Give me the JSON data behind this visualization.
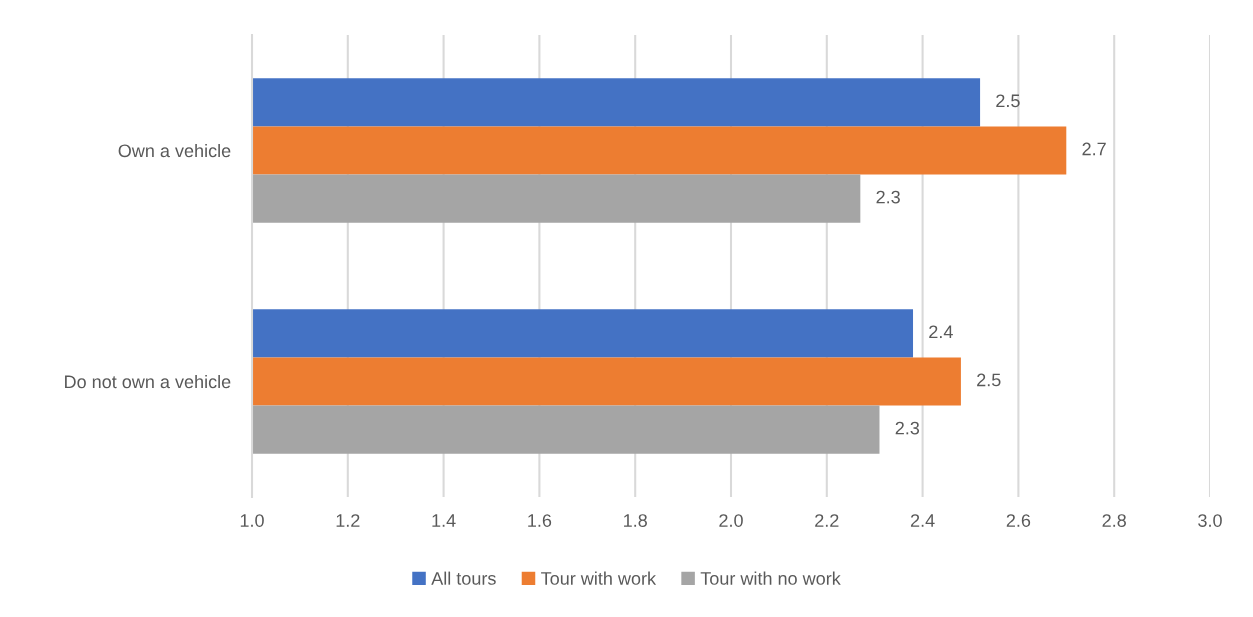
{
  "chart_data": {
    "type": "bar",
    "orientation": "horizontal",
    "categories": [
      "Own a vehicle",
      "Do not own a vehicle"
    ],
    "series": [
      {
        "name": "All tours",
        "color": "#4472c4",
        "values": [
          2.52,
          2.38
        ],
        "value_labels": [
          "2.5",
          "2.4"
        ]
      },
      {
        "name": "Tour with work",
        "color": "#ed7d31",
        "values": [
          2.7,
          2.48
        ],
        "value_labels": [
          "2.7",
          "2.5"
        ]
      },
      {
        "name": "Tour with no work",
        "color": "#a5a5a5",
        "values": [
          2.27,
          2.31
        ],
        "value_labels": [
          "2.3",
          "2.3"
        ]
      }
    ],
    "xlim": [
      1,
      3
    ],
    "xticks": [
      {
        "value": 1,
        "label": "1.0"
      },
      1.2,
      1.4,
      1.6,
      1.8,
      {
        "value": 2,
        "label": "2.0"
      },
      2.2,
      2.4,
      2.6,
      2.8,
      {
        "value": 3,
        "label": "3.0"
      }
    ],
    "grid": "x",
    "legend": "bottom"
  }
}
